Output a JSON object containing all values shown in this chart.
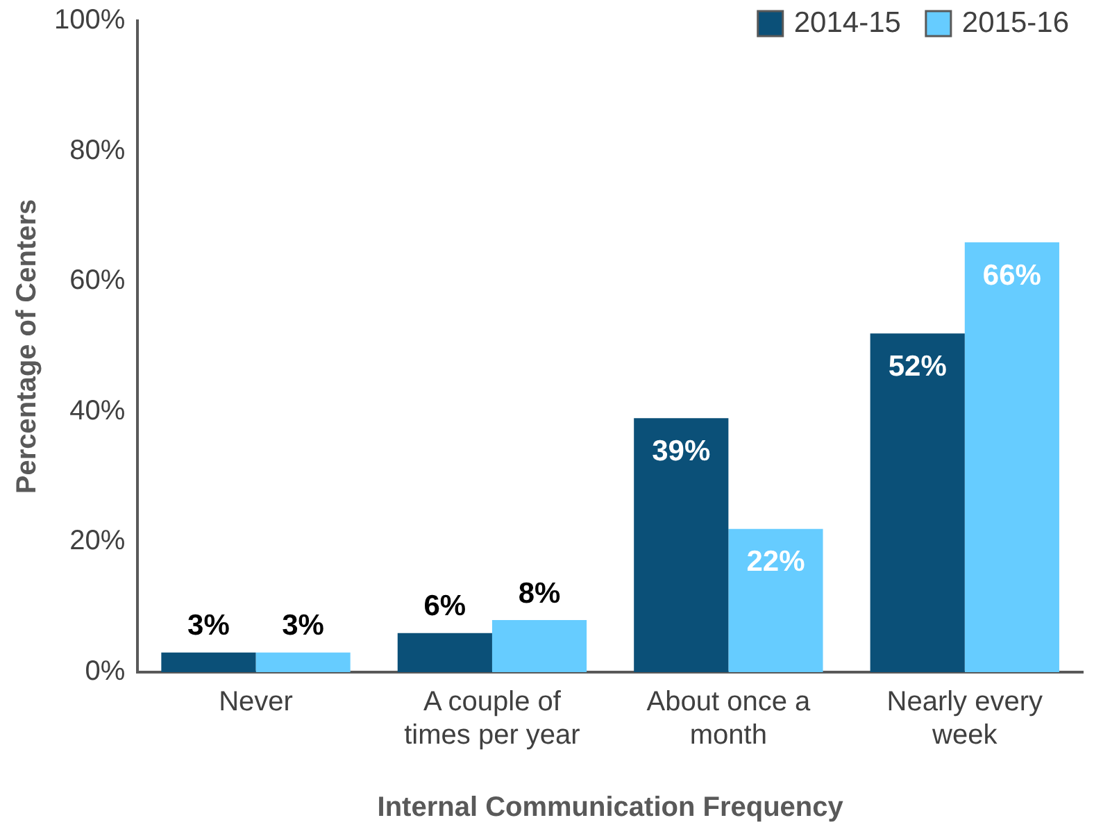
{
  "chart_data": {
    "type": "bar",
    "xlabel": "Internal Communication Frequency",
    "ylabel": "Percentage of Centers",
    "categories": [
      "Never",
      "A couple of times per year",
      "About once a month",
      "Nearly every week"
    ],
    "series": [
      {
        "name": "2014-15",
        "color": "#0b5078",
        "values": [
          3,
          6,
          39,
          52
        ],
        "value_labels": [
          "3%",
          "6%",
          "39%",
          "52%"
        ]
      },
      {
        "name": "2015-16",
        "color": "#66ccff",
        "values": [
          3,
          8,
          22,
          66
        ],
        "value_labels": [
          "3%",
          "8%",
          "22%",
          "66%"
        ]
      }
    ],
    "ylim": [
      0,
      100
    ],
    "yticks": [
      {
        "value": 0,
        "label": "0%"
      },
      {
        "value": 20,
        "label": "20%"
      },
      {
        "value": 40,
        "label": "40%"
      },
      {
        "value": 60,
        "label": "60%"
      },
      {
        "value": 80,
        "label": "80%"
      },
      {
        "value": 100,
        "label": "100%"
      }
    ],
    "grid": false,
    "legend": "top right"
  }
}
